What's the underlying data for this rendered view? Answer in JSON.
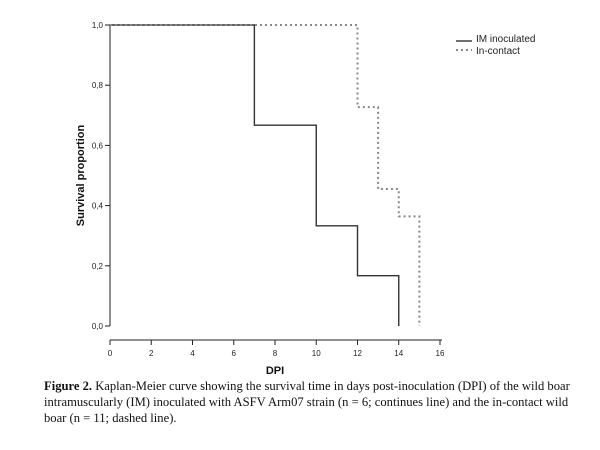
{
  "chart_data": {
    "type": "line",
    "subtype": "kaplan-meier step",
    "title": "",
    "xlabel": "DPI",
    "ylabel": "Survival proportion",
    "xlim": [
      0,
      16
    ],
    "ylim": [
      0,
      1
    ],
    "x_ticks": [
      "0",
      "2",
      "4",
      "6",
      "8",
      "10",
      "12",
      "14",
      "16"
    ],
    "y_ticks": [
      "0,0",
      "0,2",
      "0,4",
      "0,6",
      "0,8",
      "1,0"
    ],
    "grid": false,
    "legend_position": "top-right",
    "series": [
      {
        "name": "IM inoculated",
        "style": "solid",
        "color": "#333333",
        "x": [
          0,
          7,
          10,
          12,
          14
        ],
        "y": [
          1.0,
          0.667,
          0.333,
          0.167,
          0.0
        ]
      },
      {
        "name": "In-contact",
        "style": "dashed",
        "color": "#888888",
        "x": [
          0,
          12,
          13,
          14,
          15
        ],
        "y": [
          1.0,
          0.727,
          0.455,
          0.364,
          0.0
        ]
      }
    ]
  },
  "caption": {
    "label": "Figure 2.",
    "text": "Kaplan-Meier curve showing the survival time in days post-inoculation (DPI) of the wild boar intramuscularly (IM) inoculated with ASFV Arm07 strain (n = 6; continues line) and the in-contact wild boar (n = 11; dashed line)."
  }
}
